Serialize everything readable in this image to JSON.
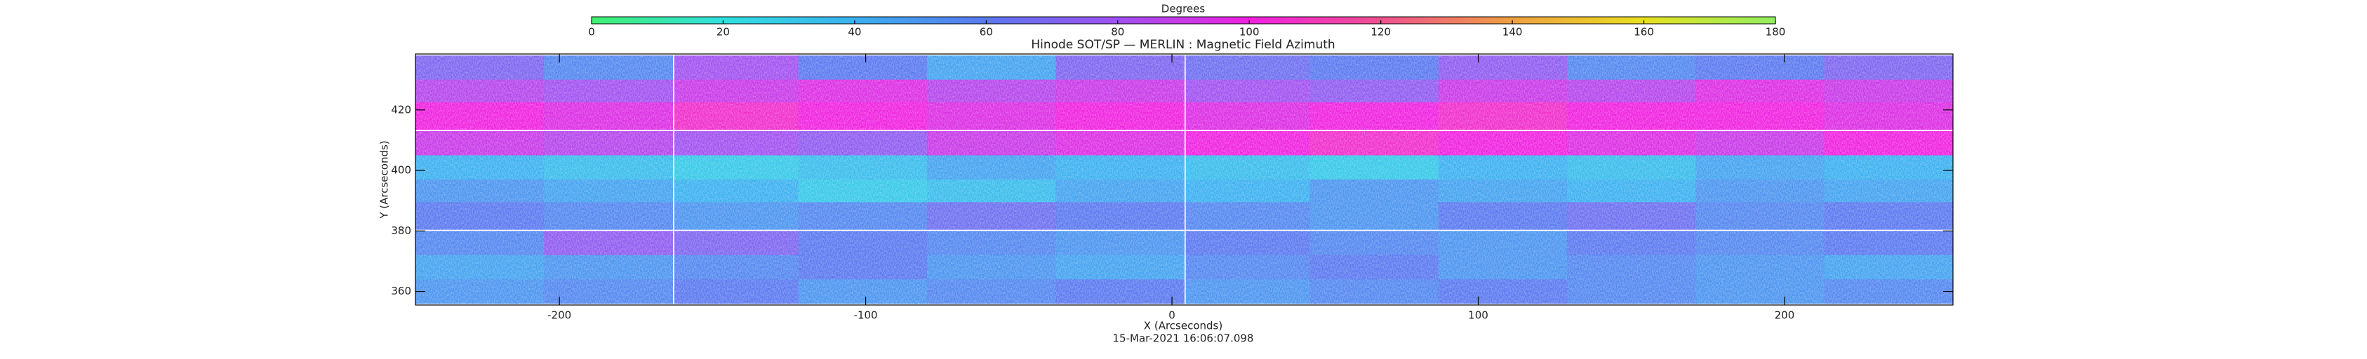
{
  "chart_data": {
    "type": "heatmap",
    "title": "Hinode SOT/SP — MERLIN : Magnetic Field Azimuth",
    "x_label": "X (Arcseconds)",
    "y_label": "Y (Arcseconds)",
    "timestamp": "15-Mar-2021 16:06:07.098",
    "colorbar_label": "Degrees",
    "colorbar_lim": [
      0,
      180
    ],
    "colorbar_ticks": [
      0,
      20,
      40,
      60,
      80,
      100,
      120,
      140,
      160,
      180
    ],
    "colormap": [
      "#40f070",
      "#30e0e0",
      "#3ab0f0",
      "#5a78f0",
      "#a050f0",
      "#f020e0",
      "#f05090",
      "#f0a040",
      "#e8e020",
      "#90f060"
    ],
    "xlim": [
      -247,
      255
    ],
    "ylim": [
      355.5,
      438.5
    ],
    "xticks": [
      -200,
      -100,
      0,
      100,
      200
    ],
    "yticks": [
      360,
      380,
      400,
      420
    ],
    "x": [
      -226,
      -184,
      -142,
      -101,
      -59,
      -17,
      25,
      66,
      108,
      150,
      192,
      234
    ],
    "y": [
      434,
      426,
      418,
      409,
      401,
      393,
      385,
      376,
      368,
      360
    ],
    "z": [
      [
        70,
        55,
        80,
        60,
        45,
        70,
        65,
        60,
        75,
        55,
        60,
        70
      ],
      [
        85,
        80,
        90,
        95,
        85,
        90,
        80,
        75,
        90,
        85,
        95,
        90
      ],
      [
        100,
        95,
        105,
        100,
        95,
        100,
        95,
        100,
        105,
        100,
        100,
        95
      ],
      [
        90,
        85,
        80,
        75,
        90,
        95,
        100,
        105,
        100,
        95,
        90,
        100
      ],
      [
        40,
        35,
        30,
        35,
        45,
        40,
        35,
        30,
        40,
        35,
        45,
        40
      ],
      [
        50,
        45,
        40,
        30,
        35,
        45,
        40,
        50,
        45,
        40,
        50,
        45
      ],
      [
        60,
        55,
        50,
        55,
        65,
        60,
        55,
        50,
        60,
        65,
        55,
        60
      ],
      [
        55,
        75,
        70,
        60,
        55,
        50,
        60,
        55,
        50,
        60,
        55,
        60
      ],
      [
        45,
        50,
        55,
        60,
        50,
        45,
        55,
        60,
        50,
        55,
        50,
        45
      ],
      [
        50,
        55,
        60,
        50,
        55,
        60,
        50,
        55,
        60,
        55,
        50,
        55
      ]
    ]
  }
}
